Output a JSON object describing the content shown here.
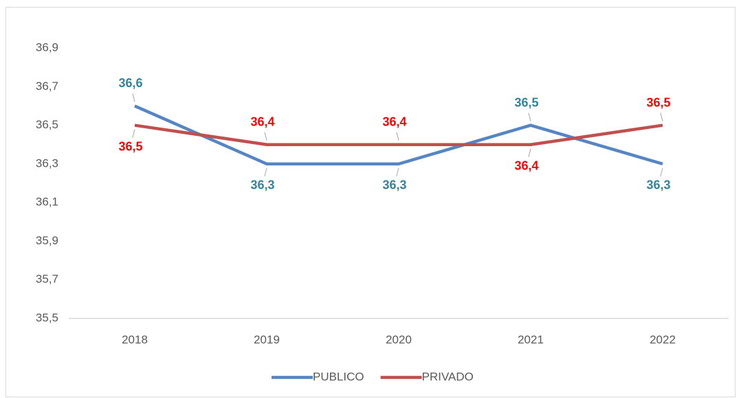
{
  "chart_data": {
    "type": "line",
    "categories": [
      "2018",
      "2019",
      "2020",
      "2021",
      "2022"
    ],
    "series": [
      {
        "name": "PUBLICO",
        "color": "#5585c4",
        "label_color": "#31849b",
        "values": [
          36.6,
          36.3,
          36.3,
          36.5,
          36.3
        ],
        "value_labels": [
          "36,6",
          "36,3",
          "36,3",
          "36,5",
          "36,3"
        ]
      },
      {
        "name": "PRIVADO",
        "color": "#c0504d",
        "label_color": "#ff0000",
        "values": [
          36.5,
          36.4,
          36.4,
          36.4,
          36.5
        ],
        "value_labels": [
          "36,5",
          "36,4",
          "36,4",
          "36,4",
          "36,5"
        ]
      }
    ],
    "ylim": [
      35.5,
      36.9
    ],
    "yticks": [
      {
        "value": 35.5,
        "label": "35,5"
      },
      {
        "value": 35.7,
        "label": "35,7"
      },
      {
        "value": 35.9,
        "label": "35,9"
      },
      {
        "value": 36.1,
        "label": "36,1"
      },
      {
        "value": 36.3,
        "label": "36,3"
      },
      {
        "value": 36.5,
        "label": "36,5"
      },
      {
        "value": 36.7,
        "label": "36,7"
      },
      {
        "value": 36.9,
        "label": "36,9"
      }
    ],
    "grid": false,
    "legend": "bottom"
  }
}
